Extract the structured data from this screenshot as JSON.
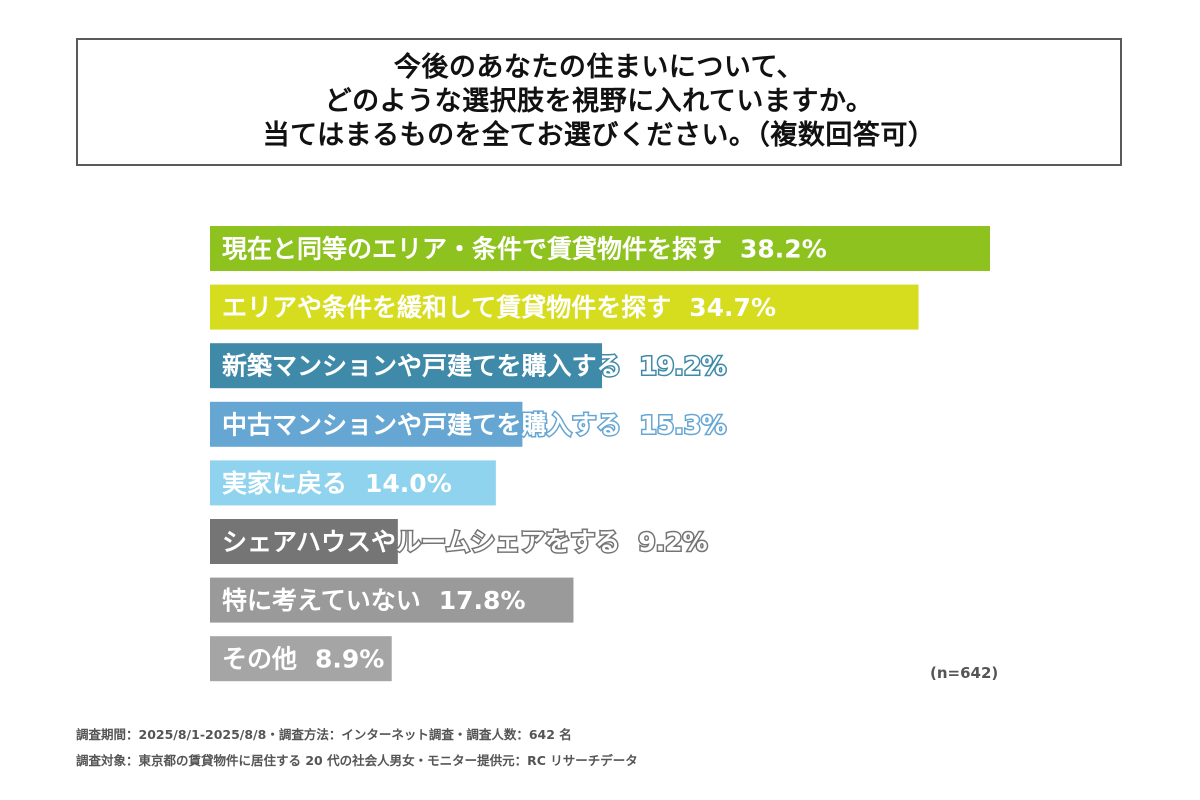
{
  "title_lines": [
    "今後のあなたの住まいについて、",
    "どのような選択肢を視野に入れていますか。",
    "当てはまるものを全てお選びください。（複数回答可）"
  ],
  "chart_data": {
    "type": "bar",
    "orientation": "horizontal",
    "categories": [
      "現在と同等のエリア・条件で賃貸物件を探す",
      "エリアや条件を緩和して賃貸物件を探す",
      "新築マンションや戸建てを購入する",
      "中古マンションや戸建てを購入する",
      "実家に戻る",
      "シェアハウスやルームシェアをする",
      "特に考えていない",
      "その他"
    ],
    "values": [
      38.2,
      34.7,
      19.2,
      15.3,
      14.0,
      9.2,
      17.8,
      8.9
    ],
    "value_labels": [
      "38.2%",
      "34.7%",
      "19.2%",
      "15.3%",
      "14.0%",
      "9.2%",
      "17.8%",
      "8.9%"
    ],
    "colors": [
      "#8dc21f",
      "#d6dc1e",
      "#3f8aa8",
      "#66a6d3",
      "#8fd3ee",
      "#757575",
      "#9a9a9a",
      "#a5a5a5"
    ],
    "xlim": [
      0,
      38.2
    ],
    "grid": false,
    "legend": "none"
  },
  "sample_size": "(n=642)",
  "footnotes": [
    "調査期間：2025/8/1-2025/8/8・調査方法：インターネット調査・調査人数：642 名",
    "調査対象：東京都の賃貸物件に居住する 20 代の社会人男女・モニター提供元：RC リサーチデータ"
  ]
}
